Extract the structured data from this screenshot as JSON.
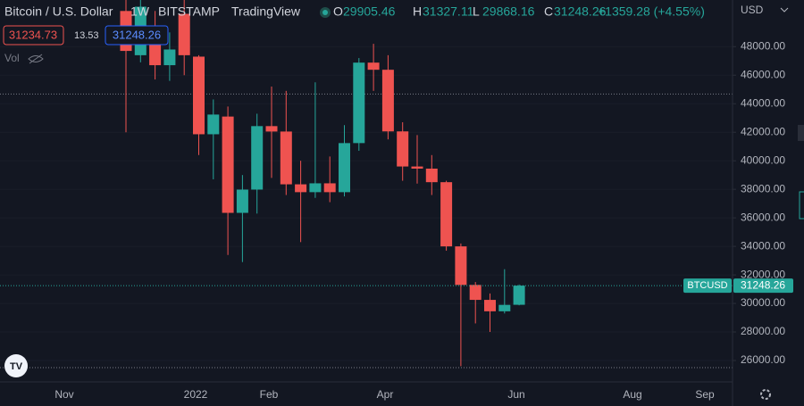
{
  "header": {
    "symbol": "Bitcoin / U.S. Dollar",
    "interval": "1W",
    "exchange": "BITSTAMP",
    "source": "TradingView",
    "ohlc": [
      {
        "key": "O",
        "value": 29905.46
      },
      {
        "key": "H",
        "value": 31327.11
      },
      {
        "key": "L",
        "value": 29868.16
      },
      {
        "key": "C",
        "value": 31248.26
      }
    ],
    "change": "+1359.28 (+4.55%)",
    "bid": 31234.73,
    "spread": 13.53,
    "ask": 31248.26,
    "volume_label": "Vol"
  },
  "chart_data": {
    "type": "candlestick",
    "currency": "USD",
    "symbol_label": "BTCUSD",
    "last_price": 31248.26,
    "up_color": "#26a69a",
    "down_color": "#ef5350",
    "x_labels": [
      "Nov",
      "2022",
      "Feb",
      "Apr",
      "Jun",
      "Aug",
      "Sep"
    ],
    "ylim": [
      24500,
      51270
    ],
    "yticks": [
      {
        "value": 26000,
        "label": "26000.00"
      },
      {
        "value": 28000,
        "label": "28000.00"
      },
      {
        "value": 30000,
        "label": "30000.00"
      },
      {
        "value": 32000,
        "label": "32000.00"
      },
      {
        "value": 34000,
        "label": "34000.00"
      },
      {
        "value": 36000,
        "label": "36000.00"
      },
      {
        "value": 38000,
        "label": "38000.00"
      },
      {
        "value": 40000,
        "label": "40000.00"
      },
      {
        "value": 42000,
        "label": "42000.00"
      },
      {
        "value": 44000,
        "label": "44000.00"
      },
      {
        "value": 46000,
        "label": "46000.00"
      },
      {
        "value": 48000,
        "label": "48000.00"
      }
    ],
    "hlines": [
      44680,
      25500
    ],
    "open": [
      50500,
      47400,
      48450,
      46700,
      50300,
      47300,
      41860,
      43100,
      36350,
      37980,
      42430,
      42050,
      38350,
      37800,
      38420,
      37800,
      41240,
      46880,
      46380,
      42060,
      39600,
      39450,
      38500,
      34000,
      31300,
      30250,
      29450,
      29905.46
    ],
    "high": [
      52000,
      52000,
      50500,
      49000,
      51300,
      47400,
      44300,
      43800,
      39000,
      43300,
      45200,
      44900,
      40000,
      45500,
      40300,
      42500,
      47200,
      48200,
      47400,
      42700,
      41800,
      40400,
      38600,
      34200,
      31500,
      30700,
      32400,
      31327.11
    ],
    "low": [
      42000,
      46900,
      45700,
      45600,
      46000,
      40400,
      38700,
      33400,
      32900,
      36300,
      38800,
      37600,
      34300,
      37400,
      37100,
      37500,
      40700,
      44900,
      41500,
      38600,
      38400,
      37600,
      33700,
      25600,
      28600,
      28000,
      29300,
      29868.16
    ],
    "close": [
      47700,
      50800,
      46700,
      47800,
      47400,
      41860,
      43240,
      36350,
      37980,
      42430,
      42050,
      38350,
      37800,
      38420,
      37800,
      41240,
      46880,
      46380,
      42060,
      39600,
      39450,
      38500,
      34000,
      31300,
      30250,
      29450,
      29900,
      31248.26
    ]
  }
}
